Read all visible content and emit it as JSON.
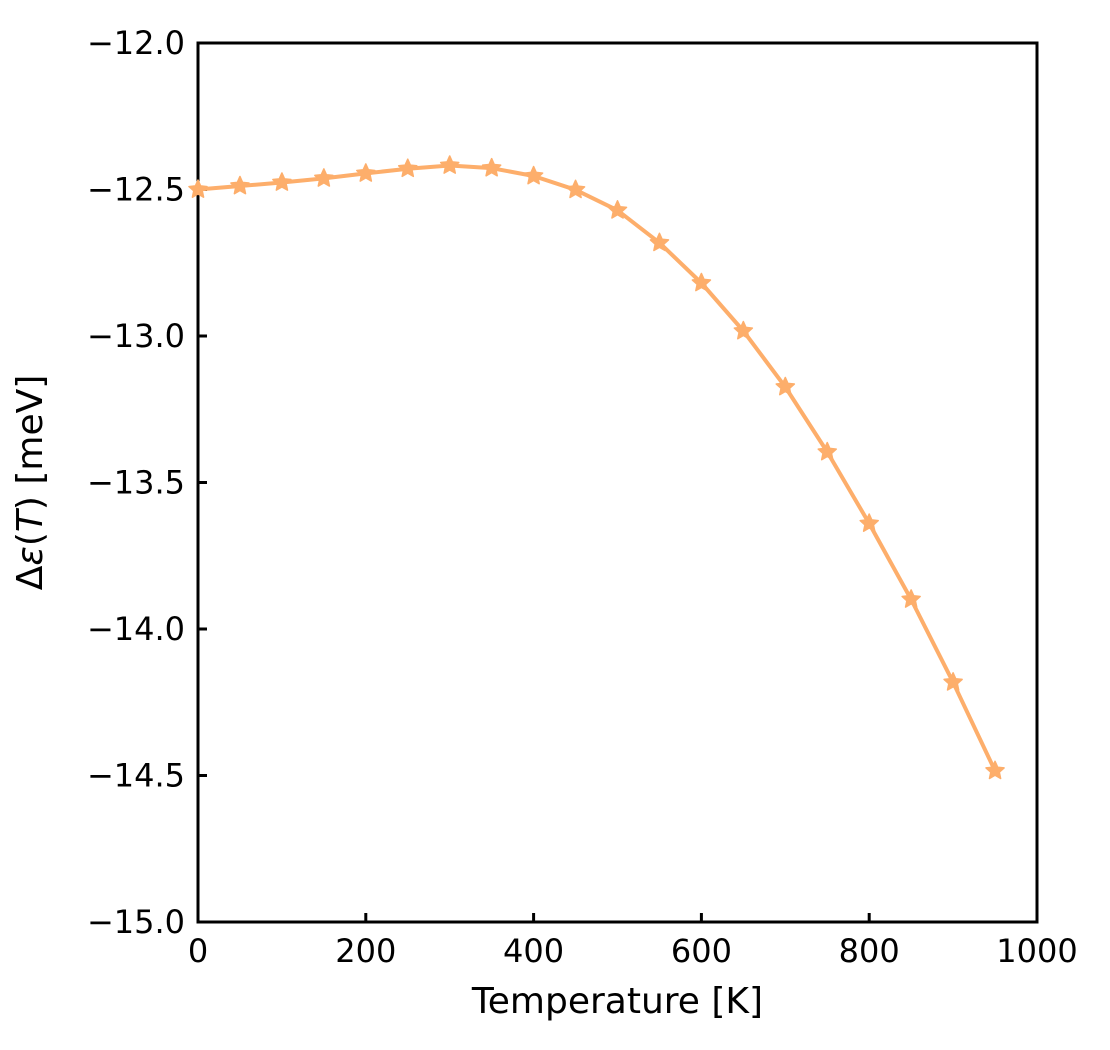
{
  "figure": {
    "background": "#ffffff",
    "axis_color": "#000000",
    "accent_color": "#fdae6b"
  },
  "chart_data": {
    "type": "line",
    "title": "",
    "xlabel": "Temperature [K]",
    "ylabel": "Δε(T) [meV]",
    "ylabel_runs": [
      {
        "text": "Δ",
        "italic": false
      },
      {
        "text": "ε",
        "italic": true
      },
      {
        "text": "(",
        "italic": false
      },
      {
        "text": "T",
        "italic": true
      },
      {
        "text": ") [meV]",
        "italic": false
      }
    ],
    "x": [
      0,
      50,
      100,
      150,
      200,
      250,
      300,
      350,
      400,
      450,
      500,
      550,
      600,
      650,
      700,
      750,
      800,
      850,
      900,
      950
    ],
    "series": [
      {
        "values": [
          -12.5,
          -12.488,
          -12.476,
          -12.462,
          -12.445,
          -12.429,
          -12.418,
          -12.427,
          -12.454,
          -12.501,
          -12.571,
          -12.682,
          -12.819,
          -12.983,
          -13.174,
          -13.396,
          -13.64,
          -13.899,
          -14.182,
          -14.484
        ],
        "color": "#fdae6b",
        "marker": "star",
        "line_width": 4,
        "marker_size": 9.5
      }
    ],
    "xlim": [
      0,
      1000
    ],
    "ylim": [
      -15.0,
      -12.0
    ],
    "xticks": [
      0,
      200,
      400,
      600,
      800,
      1000
    ],
    "xtick_labels": [
      "0",
      "200",
      "400",
      "600",
      "800",
      "1000"
    ],
    "yticks": [
      -12.0,
      -12.5,
      -13.0,
      -13.5,
      -14.0,
      -14.5,
      -15.0
    ],
    "ytick_labels": [
      "−12.0",
      "−12.5",
      "−13.0",
      "−13.5",
      "−14.0",
      "−14.5",
      "−15.0"
    ],
    "grid": false,
    "legend": null,
    "tick_direction": "in"
  }
}
